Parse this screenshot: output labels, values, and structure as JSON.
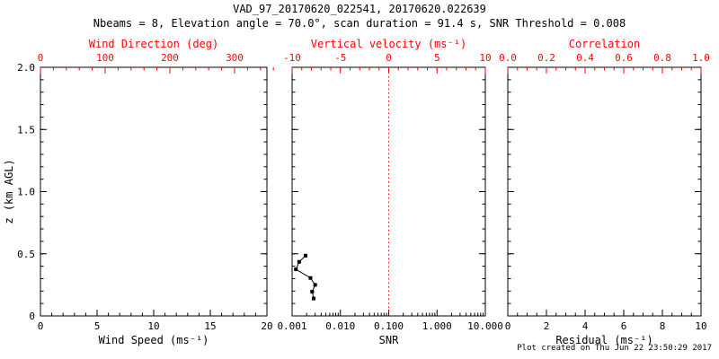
{
  "header": {
    "title": "VAD_97_20170620_022541, 20170620.022639",
    "subtitle": "Nbeams = 8, Elevation angle = 70.0°, scan duration = 91.4 s, SNR Threshold = 0.008"
  },
  "footer": {
    "created": "Plot created on Thu Jun 22 23:50:29 2017"
  },
  "colors": {
    "primary_axis": "#000000",
    "secondary_axis": "#ff0000",
    "marker": "#000000",
    "background": "#ffffff"
  },
  "chart_data": [
    {
      "type": "scatter",
      "panel": "wind-speed",
      "bottom_axis": {
        "label": "Wind Speed (ms⁻¹)",
        "scale": "linear",
        "range": [
          0,
          20
        ],
        "ticks": [
          0,
          5,
          10,
          15,
          20
        ],
        "minor_step": 1
      },
      "top_axis": {
        "label": "Wind Direction (deg)",
        "scale": "linear",
        "range": [
          0,
          350
        ],
        "ticks": [
          0,
          100,
          200,
          300
        ],
        "minor_step": 20
      },
      "y_axis": {
        "label": "z (km AGL)",
        "range": [
          0,
          2.0
        ],
        "ticks": [
          0,
          0.5,
          1.0,
          1.5,
          2.0
        ],
        "tick_labels": [
          "0",
          "0.5",
          "1.0",
          "1.5",
          "2.0"
        ],
        "minor_step": 0.1,
        "show_labels": true
      },
      "points": []
    },
    {
      "type": "scatter",
      "panel": "snr",
      "bottom_axis": {
        "label": "SNR",
        "scale": "log",
        "range": [
          0.001,
          10
        ],
        "ticks": [
          0.001,
          0.01,
          0.1,
          1,
          10
        ],
        "tick_labels": [
          "0.001",
          "0.010",
          "0.100",
          "1.000",
          "10.000"
        ]
      },
      "top_axis": {
        "label": "Vertical velocity (ms⁻¹)",
        "scale": "linear",
        "range": [
          -10,
          10
        ],
        "ticks": [
          -10,
          -5,
          0,
          5,
          10
        ],
        "minor_step": 1
      },
      "y_axis": {
        "label": "",
        "range": [
          0,
          2.0
        ],
        "ticks": [
          0,
          0.5,
          1.0,
          1.5,
          2.0
        ],
        "minor_step": 0.1,
        "show_labels": false
      },
      "reference_line": {
        "x": 0.1,
        "style": "dotted",
        "meaning": "vertical velocity = 0"
      },
      "series_name": "SNR profile",
      "points": [
        {
          "x": 0.0019,
          "y": 0.485
        },
        {
          "x": 0.0014,
          "y": 0.435
        },
        {
          "x": 0.0012,
          "y": 0.375
        },
        {
          "x": 0.0024,
          "y": 0.305
        },
        {
          "x": 0.003,
          "y": 0.25
        },
        {
          "x": 0.0026,
          "y": 0.195
        },
        {
          "x": 0.0028,
          "y": 0.14
        }
      ]
    },
    {
      "type": "scatter",
      "panel": "residual",
      "bottom_axis": {
        "label": "Residual (ms⁻¹)",
        "scale": "linear",
        "range": [
          0,
          10
        ],
        "ticks": [
          0,
          2,
          4,
          6,
          8,
          10
        ],
        "minor_step": 0.5
      },
      "top_axis": {
        "label": "Correlation",
        "scale": "linear",
        "range": [
          0,
          1
        ],
        "ticks": [
          0,
          0.2,
          0.4,
          0.6,
          0.8,
          1.0
        ],
        "tick_labels": [
          "0.0",
          "0.2",
          "0.4",
          "0.6",
          "0.8",
          "1.0"
        ],
        "minor_step": 0.05
      },
      "y_axis": {
        "label": "",
        "range": [
          0,
          2.0
        ],
        "ticks": [
          0,
          0.5,
          1.0,
          1.5,
          2.0
        ],
        "minor_step": 0.1,
        "show_labels": false
      },
      "points": []
    }
  ]
}
